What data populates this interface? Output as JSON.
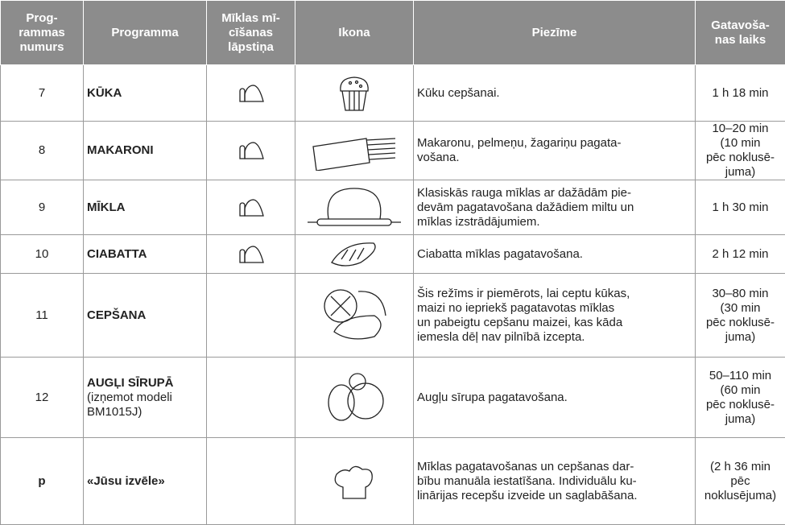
{
  "columns": [
    [
      "Prog-",
      "rammas",
      "numurs"
    ],
    [
      "Programma"
    ],
    [
      "Mīklas mī-",
      "cīšanas",
      "lāpstiņa"
    ],
    [
      "Ikona"
    ],
    [
      "Piezīme"
    ],
    [
      "Gatavoša-",
      "nas laiks"
    ]
  ],
  "rows": [
    {
      "number": "7",
      "program": "KŪKA",
      "note": [
        "Kūku cepšanai."
      ],
      "time": [
        "1 h 18 min"
      ]
    },
    {
      "number": "8",
      "program": "MAKARONI",
      "note": [
        "Makaronu, pelmeņu, žagariņu pagata-",
        "vošana."
      ],
      "time": [
        "10–20 min",
        "(10 min",
        "pēc noklusē-",
        "juma)"
      ]
    },
    {
      "number": "9",
      "program": "MĪKLA",
      "note": [
        "Klasiskās rauga mīklas ar dažādām pie-",
        "devām pagatavošana dažādiem miltu un",
        "mīklas izstrādājumiem."
      ],
      "time": [
        "1 h 30 min"
      ]
    },
    {
      "number": "10",
      "program": "CIABATTA",
      "note": [
        "Ciabatta mīklas pagatavošana."
      ],
      "time": [
        "2 h 12 min"
      ]
    },
    {
      "number": "11",
      "program": "CEPŠANA",
      "note": [
        "Šis režīms ir piemērots, lai ceptu kūkas,",
        "maizi no iepriekš pagatavotas mīklas",
        "un pabeigtu cepšanu maizei, kas kāda",
        "iemesla dēļ nav pilnībā izcepta."
      ],
      "time": [
        "30–80 min",
        "(30 min",
        "pēc noklusē-",
        "juma)"
      ]
    },
    {
      "number": "12",
      "program": "AUGĻI SĪRUPĀ",
      "program_note": [
        "(izņemot modeli",
        "BM1015J)"
      ],
      "note": [
        "Augļu sīrupa pagatavošana."
      ],
      "time": [
        "50–110 min",
        "(60 min",
        "pēc noklusē-",
        "juma)"
      ]
    },
    {
      "number": "p",
      "program": "«Jūsu izvēle»",
      "note": [
        "Mīklas pagatavošanas un cepšanas dar-",
        "bību manuāla iestatīšana. Individuālu ku-",
        "linārijas recepšu izveide un saglabāšana."
      ],
      "time": [
        "(2 h 36 min",
        "pēc",
        "noklusējuma)"
      ]
    }
  ]
}
